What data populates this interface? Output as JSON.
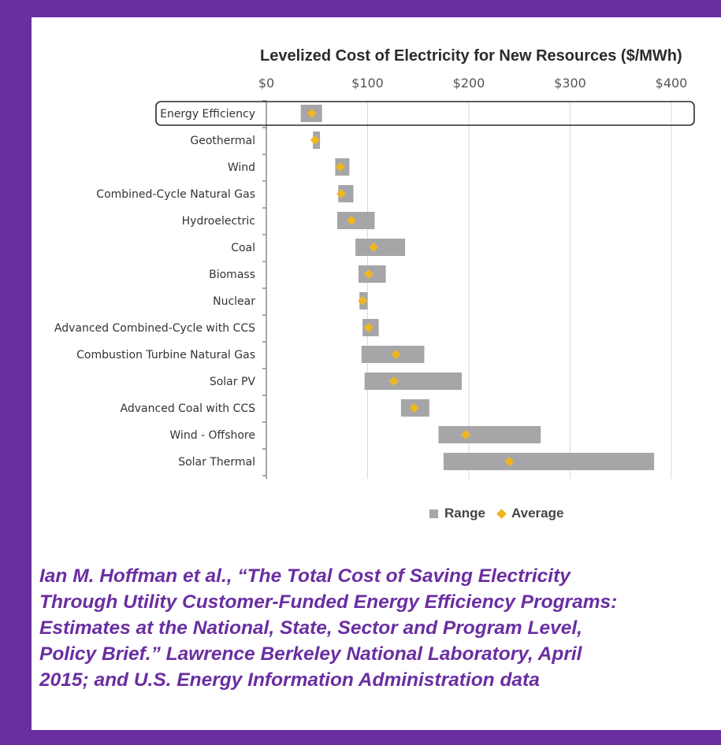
{
  "chart_data": {
    "type": "bar",
    "subtype": "floating-range with average marker",
    "title": "Levelized Cost of Electricity for New Resources ($/MWh)",
    "x_axis_position": "top",
    "xlim": [
      0,
      420
    ],
    "xticks": [
      0,
      100,
      200,
      300,
      400
    ],
    "xtick_labels": [
      "$0",
      "$100",
      "$200",
      "$300",
      "$400"
    ],
    "grid": "vertical",
    "categories": [
      "Energy Efficiency",
      "Geothermal",
      "Wind",
      "Combined-Cycle Natural Gas",
      "Hydroelectric",
      "Coal",
      "Biomass",
      "Nuclear",
      "Advanced Combined-Cycle with CCS",
      "Combustion Turbine Natural Gas",
      "Solar PV",
      "Advanced Coal with CCS",
      "Wind - Offshore",
      "Solar Thermal"
    ],
    "series": [
      {
        "name": "Range",
        "color": "#a6a6a8",
        "values": [
          [
            34,
            55
          ],
          [
            46,
            53
          ],
          [
            68,
            82
          ],
          [
            71,
            86
          ],
          [
            70,
            107
          ],
          [
            88,
            137
          ],
          [
            91,
            118
          ],
          [
            92,
            100
          ],
          [
            95,
            111
          ],
          [
            94,
            156
          ],
          [
            97,
            193
          ],
          [
            133,
            161
          ],
          [
            170,
            271
          ],
          [
            175,
            383
          ]
        ]
      },
      {
        "name": "Average",
        "color": "#f0b621",
        "values": [
          45,
          48,
          73,
          74,
          84,
          106,
          101,
          95,
          101,
          128,
          126,
          146,
          197,
          240
        ]
      }
    ],
    "highlighted_category": "Energy Efficiency",
    "legend_position": "bottom"
  },
  "legend": {
    "range_label": "Range",
    "average_label": "Average"
  },
  "citation": "Ian M. Hoffman et al., “The Total Cost of Saving Electricity\nThrough Utility Customer-Funded Energy Efficiency Programs:\nEstimates at the National, State, Sector and Program Level,\nPolicy Brief.” Lawrence Berkeley National Laboratory, April\n2015; and U.S. Energy Information Administration data",
  "colors": {
    "frame": "#6a2ea1",
    "range": "#a6a6a8",
    "average": "#f0b621",
    "citation": "#6a2ea1"
  }
}
